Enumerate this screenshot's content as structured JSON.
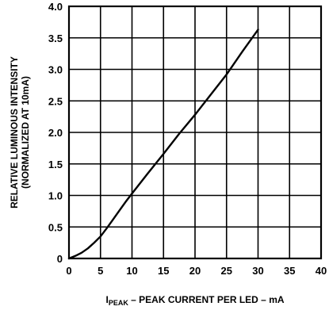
{
  "chart_data": {
    "type": "line",
    "xlabel_sub": "PEAK",
    "xlabel_prefix": "I",
    "xlabel_rest": " – PEAK CURRENT PER LED – mA",
    "ylabel_line1": "RELATIVE LUMINOUS INTENSITY",
    "ylabel_line2": "(NORMALIZED AT 10mA)",
    "xlim": [
      0,
      40
    ],
    "ylim": [
      0,
      4.0
    ],
    "x_ticks": [
      0,
      5,
      10,
      15,
      20,
      25,
      30,
      35,
      40
    ],
    "x_tick_labels": [
      "0",
      "5",
      "10",
      "15",
      "20",
      "25",
      "30",
      "35",
      "40"
    ],
    "y_ticks": [
      0,
      0.5,
      1.0,
      1.5,
      2.0,
      2.5,
      3.0,
      3.5,
      4.0
    ],
    "y_tick_labels": [
      "0",
      "0.5",
      "1.0",
      "1.5",
      "2.0",
      "2.5",
      "3.0",
      "3.5",
      "4.0"
    ],
    "grid": true,
    "series": [
      {
        "x": [
          0,
          1,
          2,
          3,
          4,
          5,
          6,
          7,
          8,
          9,
          10,
          12.5,
          15,
          17.5,
          20,
          22.5,
          25,
          27.5,
          30
        ],
        "y": [
          0,
          0.04,
          0.09,
          0.16,
          0.25,
          0.35,
          0.48,
          0.62,
          0.76,
          0.9,
          1.03,
          1.35,
          1.66,
          1.98,
          2.28,
          2.6,
          2.92,
          3.28,
          3.63
        ]
      }
    ]
  }
}
